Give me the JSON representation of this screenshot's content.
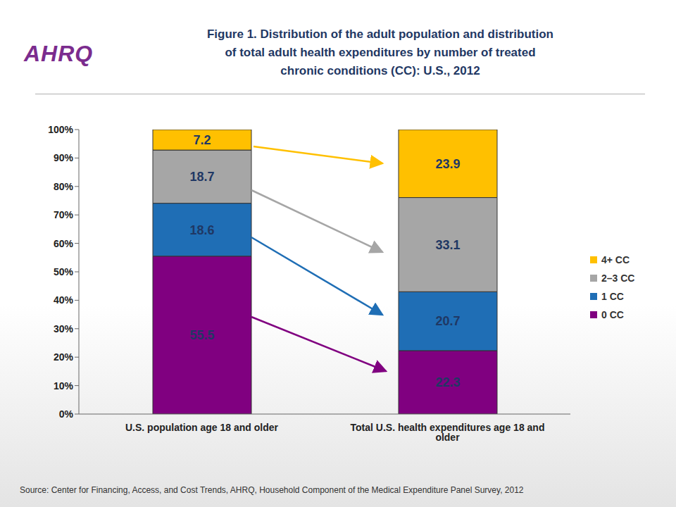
{
  "chart_data": {
    "type": "bar",
    "title": "Figure 1. Distribution of the adult population and distribution of total adult health expenditures by number of treated chronic conditions (CC): U.S., 2012",
    "logo": "AHRQ",
    "source": "Source: Center for Financing, Access, and Cost Trends, AHRQ, Household Component of the Medical Expenditure Panel Survey, 2012",
    "categories": [
      "U.S. population age 18 and older",
      "Total U.S. health expenditures age 18 and older"
    ],
    "series": [
      {
        "name": "0 CC",
        "color": "#800080",
        "values": [
          55.5,
          22.3
        ]
      },
      {
        "name": "1 CC",
        "color": "#1f6eb5",
        "values": [
          18.6,
          20.7
        ]
      },
      {
        "name": "2–3 CC",
        "color": "#a6a6a6",
        "values": [
          18.7,
          33.1
        ]
      },
      {
        "name": "4+ CC",
        "color": "#ffc000",
        "values": [
          7.2,
          23.9
        ]
      }
    ],
    "ylim": [
      0,
      100
    ],
    "yticks": [
      {
        "value": 0,
        "label": "0%"
      },
      {
        "value": 10,
        "label": "10%"
      },
      {
        "value": 20,
        "label": "20%"
      },
      {
        "value": 30,
        "label": "30%"
      },
      {
        "value": 40,
        "label": "40%"
      },
      {
        "value": 50,
        "label": "50%"
      },
      {
        "value": 60,
        "label": "60%"
      },
      {
        "value": 70,
        "label": "70%"
      },
      {
        "value": 80,
        "label": "80%"
      },
      {
        "value": 90,
        "label": "90%"
      },
      {
        "value": 100,
        "label": "100%"
      }
    ],
    "stacked": true,
    "data_labels": true,
    "legend": "right",
    "grid": false
  }
}
